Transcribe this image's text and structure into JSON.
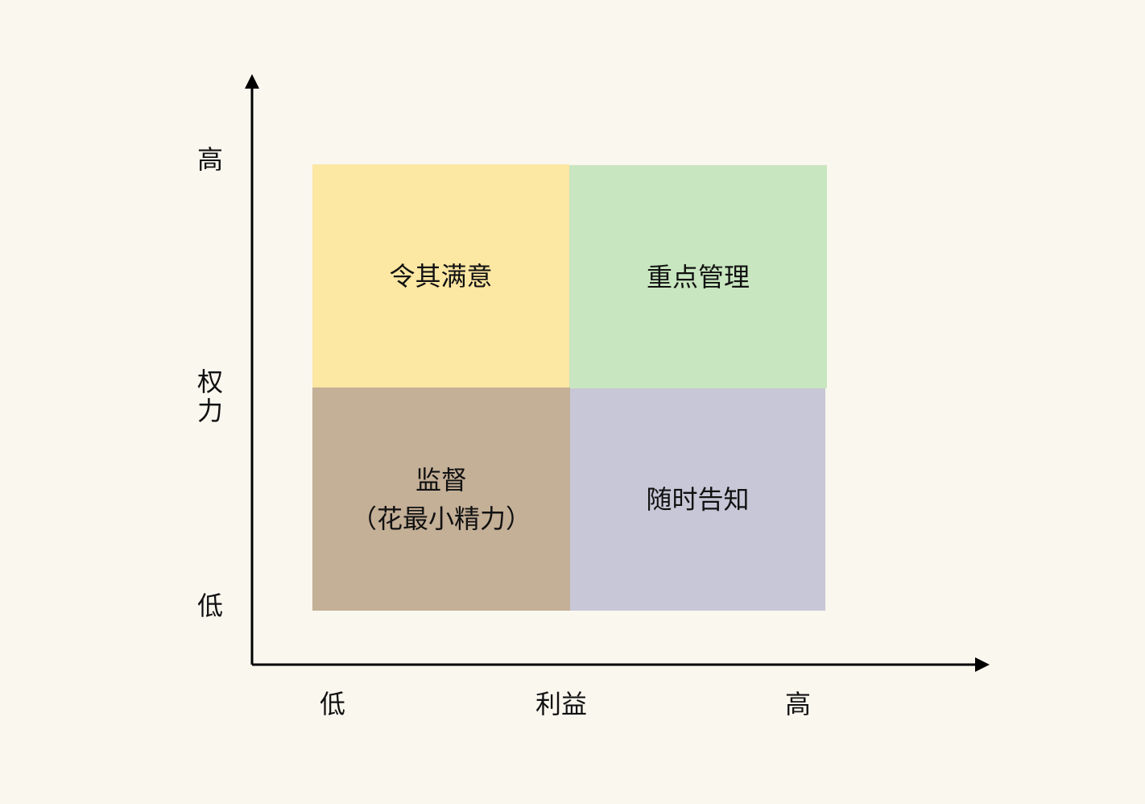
{
  "y_axis": {
    "label": "权力",
    "high": "高",
    "low": "低"
  },
  "x_axis": {
    "label": "利益",
    "high": "高",
    "low": "低"
  },
  "quadrants": {
    "top_left": {
      "label": "令其满意",
      "color": "#fce7a3"
    },
    "top_right": {
      "label": "重点管理",
      "color": "#c8e6bf"
    },
    "bottom_left": {
      "line1": "监督",
      "line2": "（花最小精力）",
      "color": "#c4af97"
    },
    "bottom_right": {
      "label": "随时告知",
      "color": "#c8c7d7"
    }
  }
}
